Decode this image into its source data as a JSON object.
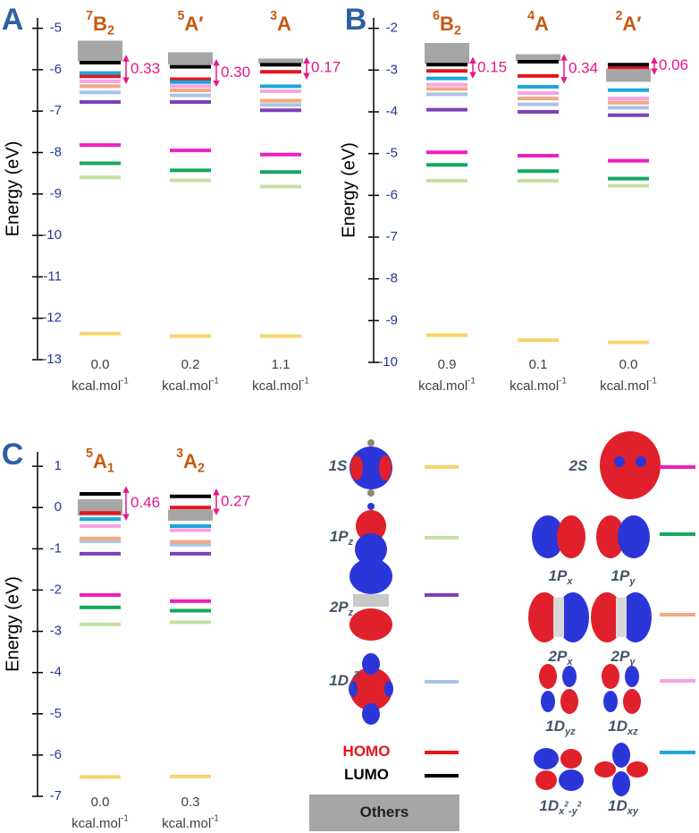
{
  "chart_data": [
    {
      "type": "energy-levels",
      "panel": "A",
      "ylabel": "Energy (eV)",
      "ylim": [
        -13,
        -4.75
      ],
      "yticks": [
        -5,
        -6,
        -7,
        -8,
        -9,
        -10,
        -11,
        -12,
        -13
      ],
      "categories": [
        [
          {
            "text": "7",
            "shift": "sup"
          },
          {
            "text": "B"
          },
          {
            "text": "2",
            "shift": "sub"
          }
        ],
        [
          {
            "text": "5",
            "shift": "sup"
          },
          {
            "text": "A′"
          }
        ],
        [
          {
            "text": "3",
            "shift": "sup"
          },
          {
            "text": "A"
          }
        ]
      ],
      "series": [
        {
          "values": [
            -12.37,
            -12.43,
            -12.43
          ]
        },
        {
          "values": [
            -8.6,
            -8.67,
            -8.82
          ]
        },
        {
          "values": [
            -6.78,
            -6.78,
            -6.98
          ]
        },
        {
          "values": [
            -6.55,
            -6.62,
            -6.85
          ]
        },
        {
          "values": [
            -6.16,
            -6.23,
            -6.05
          ]
        },
        {
          "values": [
            -5.83,
            -5.93,
            -5.88
          ]
        },
        {
          "values": [
            [
              -5.8,
              -5.3
            ],
            [
              -5.88,
              -5.58
            ],
            [
              -5.85,
              -5.73
            ]
          ]
        },
        {
          "values": [
            -7.82,
            -7.95,
            -8.05
          ]
        },
        {
          "values": [
            -8.26,
            -8.43,
            -8.47
          ]
        },
        {
          "values": [
            -6.4,
            -6.5,
            -6.75
          ]
        },
        {
          "values": [
            -6.28,
            -6.4,
            -6.52
          ]
        },
        {
          "values": [
            -6.08,
            -6.3,
            -6.4
          ]
        }
      ],
      "gaps": {
        "values": [
          0.33,
          0.3,
          0.17
        ],
        "value_labels": [
          "0.33",
          "0.30",
          "0.17"
        ]
      },
      "relative_energy": {
        "values": [
          0,
          0.2,
          1.1
        ],
        "value_labels": [
          "0.0",
          "0.2",
          "1.1"
        ]
      }
    },
    {
      "type": "energy-levels",
      "panel": "B",
      "ylabel": "Energy (eV)",
      "ylim": [
        -10,
        -1.75
      ],
      "yticks": [
        -2,
        -3,
        -4,
        -5,
        -6,
        -7,
        -8,
        -9,
        -10
      ],
      "categories": [
        [
          {
            "text": "6",
            "shift": "sup"
          },
          {
            "text": "B"
          },
          {
            "text": "2",
            "shift": "sub"
          }
        ],
        [
          {
            "text": "4",
            "shift": "sup"
          },
          {
            "text": "A"
          }
        ],
        [
          {
            "text": "2",
            "shift": "sup"
          },
          {
            "text": "A′"
          }
        ]
      ],
      "series": [
        {
          "values": [
            -9.35,
            -9.47,
            -9.52
          ]
        },
        {
          "values": [
            -5.65,
            -5.65,
            -5.77
          ]
        },
        {
          "values": [
            -3.95,
            -4.0,
            -4.08
          ]
        },
        {
          "values": [
            -3.58,
            -3.82,
            -3.9
          ]
        },
        {
          "values": [
            -3.02,
            -3.14,
            -2.93
          ]
        },
        {
          "values": [
            -2.87,
            -2.8,
            -2.87
          ]
        },
        {
          "values": [
            [
              -2.85,
              -2.35
            ],
            [
              -2.78,
              -2.62
            ],
            [
              -3.28,
              -2.96
            ]
          ]
        },
        {
          "values": [
            -4.97,
            -5.05,
            -5.17
          ]
        },
        {
          "values": [
            -5.27,
            -5.42,
            -5.6
          ]
        },
        {
          "values": [
            -3.45,
            -3.68,
            -3.78
          ]
        },
        {
          "values": [
            -3.35,
            -3.55,
            -3.68
          ]
        },
        {
          "values": [
            -3.2,
            -3.4,
            -3.48
          ]
        }
      ],
      "gaps": {
        "values": [
          0.15,
          0.34,
          0.06
        ],
        "value_labels": [
          "0.15",
          "0.34",
          "0.06"
        ]
      },
      "relative_energy": {
        "values": [
          0.9,
          0.1,
          0
        ],
        "value_labels": [
          "0.9",
          "0.1",
          "0.0"
        ]
      }
    },
    {
      "type": "energy-levels",
      "panel": "C",
      "ylabel": "Energy (eV)",
      "ylim": [
        -7,
        1.35
      ],
      "yticks": [
        1,
        0,
        -1,
        -2,
        -3,
        -4,
        -5,
        -6,
        -7
      ],
      "categories": [
        [
          {
            "text": "5",
            "shift": "sup"
          },
          {
            "text": "A"
          },
          {
            "text": "1",
            "shift": "sub"
          }
        ],
        [
          {
            "text": "3",
            "shift": "sup"
          },
          {
            "text": "A"
          },
          {
            "text": "2",
            "shift": "sub"
          }
        ]
      ],
      "series": [
        {
          "values": [
            -6.53,
            -6.52
          ]
        },
        {
          "values": [
            -2.83,
            -2.78
          ]
        },
        {
          "values": [
            -1.12,
            -1.12
          ]
        },
        {
          "values": [
            -0.82,
            -0.9
          ]
        },
        {
          "values": [
            -0.13,
            0
          ]
        },
        {
          "values": [
            0.33,
            0.27
          ]
        },
        {
          "values": [
            [
              -0.2,
              0.2
            ],
            [
              -0.32,
              -0.05
            ]
          ]
        },
        {
          "values": [
            -2.12,
            -2.27
          ]
        },
        {
          "values": [
            -2.42,
            -2.5
          ]
        },
        {
          "values": [
            -0.75,
            -0.83
          ]
        },
        {
          "values": [
            -0.45,
            -0.55
          ]
        },
        {
          "values": [
            -0.28,
            -0.45
          ]
        }
      ],
      "gaps": {
        "values": [
          0.46,
          0.27
        ],
        "value_labels": [
          "0.46",
          "0.27"
        ]
      },
      "relative_energy": {
        "values": [
          0,
          0.3
        ],
        "value_labels": [
          "0.0",
          "0.3"
        ]
      }
    }
  ],
  "unit": [
    {
      "text": "kcal.mol"
    },
    {
      "text": "-1",
      "shift": "sup"
    }
  ],
  "legend": {
    "items": [
      {
        "labels": [
          [
            {
              "text": "1S"
            }
          ]
        ],
        "color": "#f9d46b"
      },
      {
        "labels": [
          [
            {
              "text": "1P"
            },
            {
              "text": "z",
              "shift": "sub"
            }
          ]
        ],
        "color": "#c5dfa5"
      },
      {
        "labels": [
          [
            {
              "text": "2P"
            },
            {
              "text": "z",
              "shift": "sub"
            }
          ]
        ],
        "color": "#8040b8"
      },
      {
        "labels": [
          [
            {
              "text": "1D"
            },
            {
              "text": "z",
              "shift": "sub"
            },
            {
              "text": "2",
              "shift": "sup"
            }
          ]
        ],
        "color": "#a9c4e8"
      },
      {
        "labels": [
          [
            {
              "text": "HOMO"
            }
          ]
        ],
        "color": "#e8141c"
      },
      {
        "labels": [
          [
            {
              "text": "LUMO"
            }
          ]
        ],
        "color": "#000000"
      },
      {
        "labels": [
          [
            {
              "text": "Others"
            }
          ]
        ],
        "color": "#a6a6a6"
      },
      {
        "labels": [
          [
            {
              "text": "2S"
            }
          ]
        ],
        "color": "#ee1fbf"
      },
      {
        "labels": [
          [
            {
              "text": "1P"
            },
            {
              "text": "x",
              "shift": "sub"
            }
          ],
          [
            {
              "text": "1P"
            },
            {
              "text": "y",
              "shift": "sub"
            }
          ]
        ],
        "color": "#12a95b"
      },
      {
        "labels": [
          [
            {
              "text": "2P"
            },
            {
              "text": "x",
              "shift": "sub"
            }
          ],
          [
            {
              "text": "2P"
            },
            {
              "text": "y",
              "shift": "sub"
            }
          ]
        ],
        "color": "#f4a882"
      },
      {
        "labels": [
          [
            {
              "text": "1D"
            },
            {
              "text": "yz",
              "shift": "sub"
            }
          ],
          [
            {
              "text": "1D"
            },
            {
              "text": "xz",
              "shift": "sub"
            }
          ]
        ],
        "color": "#f6a3e3"
      },
      {
        "labels": [
          [
            {
              "text": "1D"
            },
            {
              "text": "x",
              "shift": "sub"
            },
            {
              "text": "2",
              "shift": "subsup"
            },
            {
              "text": "-y",
              "shift": "sub"
            },
            {
              "text": "2",
              "shift": "subsup"
            }
          ],
          [
            {
              "text": "1D"
            },
            {
              "text": "xy",
              "shift": "sub"
            }
          ]
        ],
        "color": "#1ba6dd"
      }
    ]
  }
}
